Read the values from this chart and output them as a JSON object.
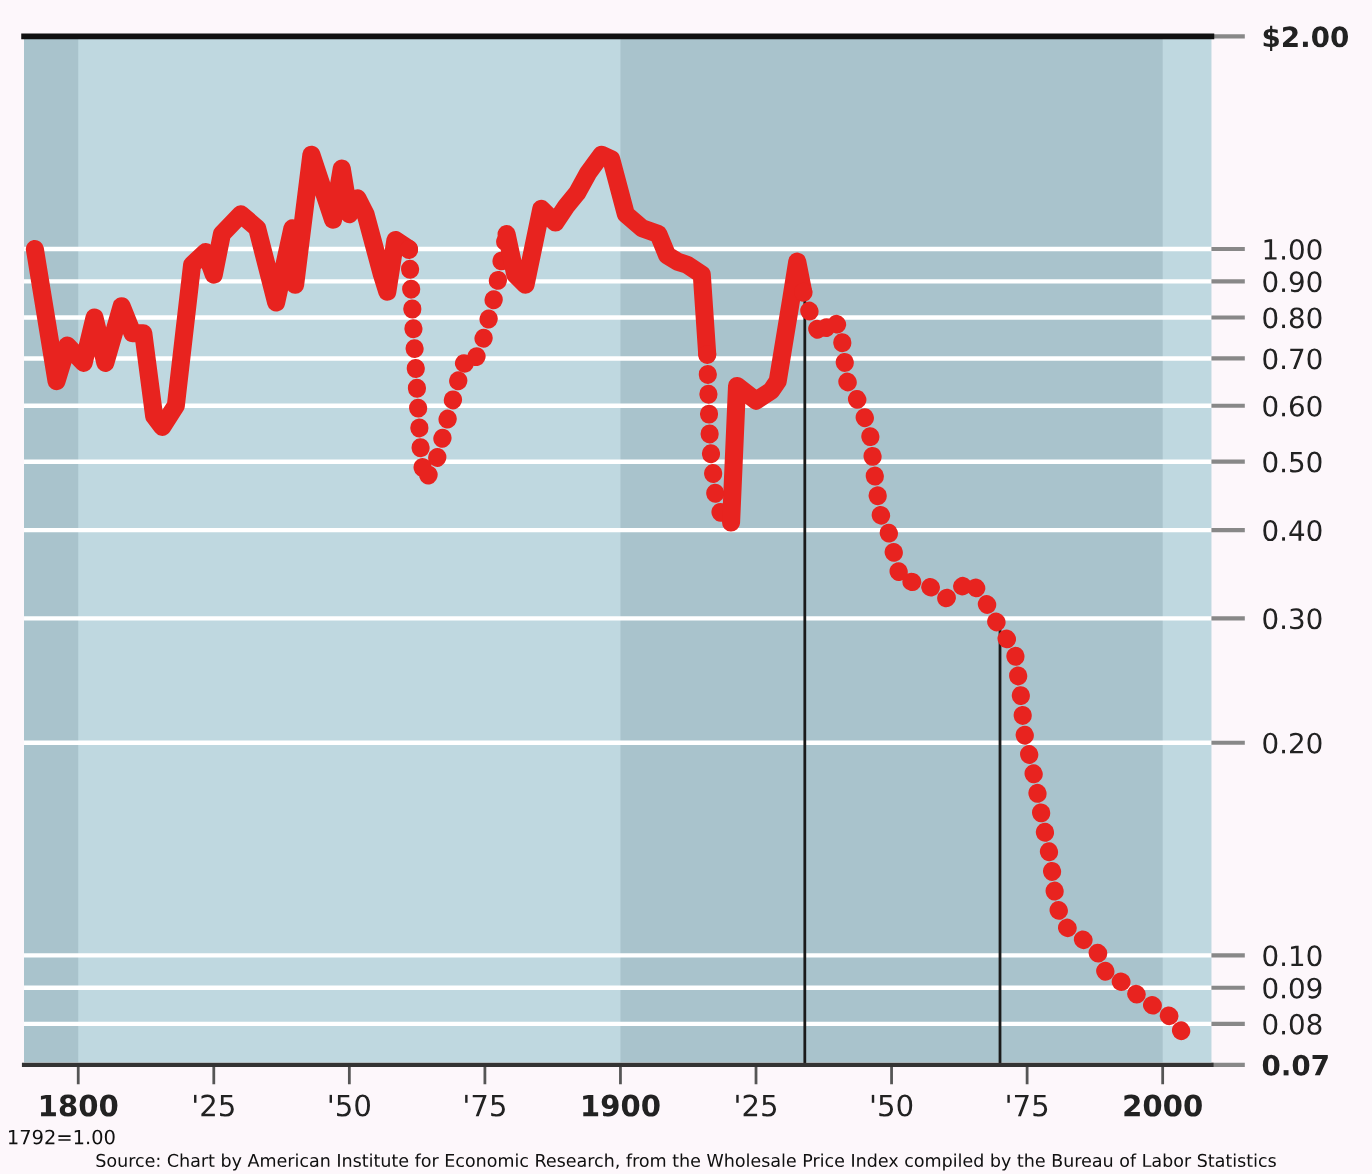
{
  "chart_data": {
    "type": "line",
    "xlim": [
      1790,
      2009
    ],
    "ylim": [
      0.07,
      2.0
    ],
    "log": "y",
    "grid": "y",
    "xticks": [
      {
        "value": 1800,
        "label": "1800"
      },
      {
        "value": 1825,
        "label": "'25"
      },
      {
        "value": 1850,
        "label": "'50"
      },
      {
        "value": 1875,
        "label": "'75"
      },
      {
        "value": 1900,
        "label": "1900"
      },
      {
        "value": 1925,
        "label": "'25"
      },
      {
        "value": 1950,
        "label": "'50"
      },
      {
        "value": 1975,
        "label": "'75"
      },
      {
        "value": 2000,
        "label": "2000"
      }
    ],
    "yticks": [
      {
        "value": 2.0,
        "label": "$2.00"
      },
      {
        "value": 1.0,
        "label": "1.00"
      },
      {
        "value": 0.9,
        "label": "0.90"
      },
      {
        "value": 0.8,
        "label": "0.80"
      },
      {
        "value": 0.7,
        "label": "0.70"
      },
      {
        "value": 0.6,
        "label": "0.60"
      },
      {
        "value": 0.5,
        "label": "0.50"
      },
      {
        "value": 0.4,
        "label": "0.40"
      },
      {
        "value": 0.3,
        "label": "0.30"
      },
      {
        "value": 0.2,
        "label": "0.20"
      },
      {
        "value": 0.1,
        "label": "0.10"
      },
      {
        "value": 0.09,
        "label": "0.09"
      },
      {
        "value": 0.08,
        "label": "0.08"
      },
      {
        "value": 0.07,
        "label": "0.07"
      }
    ],
    "series": [
      {
        "color": "#e8231f",
        "line_style": "solid",
        "x": [
          1792,
          1796,
          1798,
          1801,
          1803,
          1805,
          1808,
          1810,
          1812,
          1814,
          1815.5,
          1818,
          1821,
          1823.5,
          1825,
          1826.5,
          1830,
          1833,
          1836.5,
          1839.5,
          1840,
          1843,
          1847,
          1848.6,
          1850,
          1851.5,
          1853,
          1856,
          1857,
          1858.5,
          1861
        ],
        "values": [
          1.0,
          0.65,
          0.73,
          0.69,
          0.8,
          0.69,
          0.83,
          0.76,
          0.76,
          0.58,
          0.56,
          0.6,
          0.95,
          0.99,
          0.92,
          1.05,
          1.12,
          1.07,
          0.84,
          1.07,
          0.89,
          1.36,
          1.1,
          1.3,
          1.12,
          1.18,
          1.12,
          0.92,
          0.87,
          1.03,
          1.0
        ]
      },
      {
        "color": "#e8231f",
        "line_style": "dotted",
        "x": [
          1861,
          1861.5,
          1862.6,
          1863.3,
          1864,
          1866,
          1868,
          1871,
          1872.5,
          1874.4,
          1877,
          1879
        ],
        "values": [
          1.0,
          0.85,
          0.61,
          0.5,
          0.47,
          0.5,
          0.57,
          0.69,
          0.68,
          0.73,
          0.87,
          1.05
        ]
      },
      {
        "color": "#e8231f",
        "line_style": "solid",
        "x": [
          1879,
          1880.6,
          1882.5,
          1885.4,
          1888,
          1890,
          1892,
          1894,
          1896.5,
          1898.3,
          1901,
          1904,
          1907,
          1908.6,
          1910.5,
          1912.3,
          1915,
          1916
        ],
        "values": [
          1.05,
          0.92,
          0.89,
          1.14,
          1.09,
          1.15,
          1.2,
          1.28,
          1.36,
          1.34,
          1.12,
          1.07,
          1.05,
          0.98,
          0.96,
          0.95,
          0.92,
          0.71
        ]
      },
      {
        "color": "#e8231f",
        "line_style": "dotted",
        "x": [
          1916,
          1916.5,
          1917.5,
          1919,
          1920.4
        ],
        "values": [
          0.71,
          0.53,
          0.45,
          0.41,
          0.41
        ]
      },
      {
        "color": "#e8231f",
        "line_style": "solid",
        "x": [
          1920.4,
          1921.5,
          1925,
          1927.8,
          1929,
          1931.5,
          1932.6,
          1933.7
        ],
        "values": [
          0.41,
          0.64,
          0.61,
          0.63,
          0.65,
          0.85,
          0.96,
          0.87
        ]
      },
      {
        "color": "#e8231f",
        "line_style": "dotted",
        "x": [
          1933.7,
          1935,
          1937,
          1939,
          1940.6,
          1941.8,
          1944.3,
          1946,
          1947,
          1948,
          1949,
          1951.7,
          1956.5,
          1960,
          1964.6,
          1967.5,
          1970,
          1972.7,
          1973.8,
          1974.5,
          1976.4,
          1978,
          1979.3,
          1980.4,
          1982,
          1985.5,
          1988.5,
          1989.6,
          1993.3,
          1996.6,
          1999.6,
          2003,
          2004.4
        ],
        "values": [
          0.87,
          0.81,
          0.75,
          0.8,
          0.77,
          0.65,
          0.6,
          0.55,
          0.47,
          0.42,
          0.41,
          0.34,
          0.335,
          0.32,
          0.34,
          0.315,
          0.29,
          0.27,
          0.235,
          0.206,
          0.178,
          0.153,
          0.137,
          0.118,
          0.11,
          0.105,
          0.1,
          0.094,
          0.091,
          0.086,
          0.084,
          0.08,
          0.074
        ]
      }
    ],
    "ref_lines": [
      {
        "axis": "x",
        "value": 1934,
        "color": "#1a1a1a"
      },
      {
        "axis": "x",
        "value": 1970,
        "color": "#1a1a1a"
      }
    ],
    "bands": [
      {
        "axis": "x",
        "from": 1790,
        "to": 1800,
        "color": "#a9c3cc"
      },
      {
        "axis": "x",
        "from": 1900,
        "to": 2000,
        "color": "#a9c3cc"
      }
    ],
    "annotations": [
      "1792=1.00",
      "Source: Chart by American Institute for Economic Research, from the Wholesale Price Index compiled by the Bureau of Labor Statistics"
    ]
  }
}
